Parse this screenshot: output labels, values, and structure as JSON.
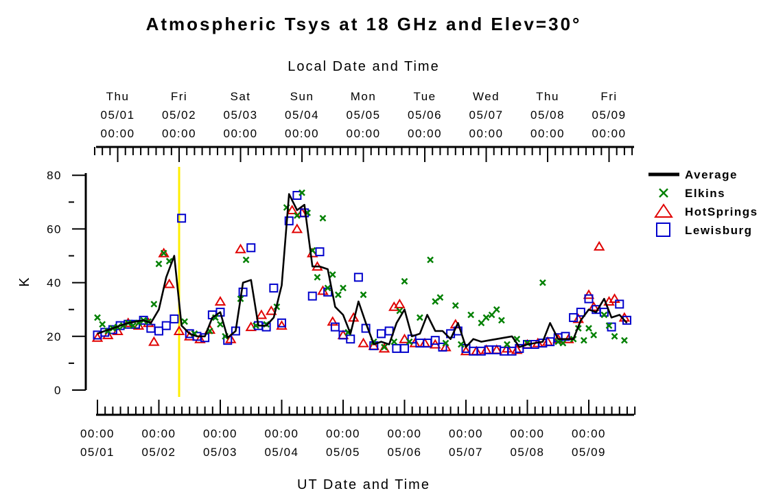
{
  "chart_data": {
    "type": "line",
    "title": "Atmospheric Tsys at 18 GHz and Elev=30°",
    "top_axis_label": "Local Date and Time",
    "xlabel": "UT Date and Time",
    "ylabel": "K",
    "ylim": [
      0,
      80
    ],
    "y_ticks": [
      "0",
      "20",
      "40",
      "60",
      "80"
    ],
    "x_unit": "days since 05/01 00:00 UT",
    "xlim": [
      0,
      8.75
    ],
    "bottom_ticks": [
      {
        "t": "00:00",
        "d": "05/01",
        "x": 0
      },
      {
        "t": "00:00",
        "d": "05/02",
        "x": 1
      },
      {
        "t": "00:00",
        "d": "05/03",
        "x": 2
      },
      {
        "t": "00:00",
        "d": "05/04",
        "x": 3
      },
      {
        "t": "00:00",
        "d": "05/05",
        "x": 4
      },
      {
        "t": "00:00",
        "d": "05/06",
        "x": 5
      },
      {
        "t": "00:00",
        "d": "05/07",
        "x": 6
      },
      {
        "t": "00:00",
        "d": "05/08",
        "x": 7
      },
      {
        "t": "00:00",
        "d": "05/09",
        "x": 8
      }
    ],
    "top_ticks": [
      {
        "day": "Thu",
        "d": "05/01",
        "t": "00:00",
        "x": 0.33
      },
      {
        "day": "Fri",
        "d": "05/02",
        "t": "00:00",
        "x": 1.33
      },
      {
        "day": "Sat",
        "d": "05/03",
        "t": "00:00",
        "x": 2.33
      },
      {
        "day": "Sun",
        "d": "05/04",
        "t": "00:00",
        "x": 3.33
      },
      {
        "day": "Mon",
        "d": "05/05",
        "t": "00:00",
        "x": 4.33
      },
      {
        "day": "Tue",
        "d": "05/06",
        "t": "00:00",
        "x": 5.33
      },
      {
        "day": "Wed",
        "d": "05/07",
        "t": "00:00",
        "x": 6.33
      },
      {
        "day": "Thu",
        "d": "05/08",
        "t": "00:00",
        "x": 7.33
      },
      {
        "day": "Fri",
        "d": "05/09",
        "t": "00:00",
        "x": 8.33
      }
    ],
    "marker_line": {
      "x": 1.33,
      "color": "#ffee00"
    },
    "legend_position": "right",
    "series": [
      {
        "name": "Average",
        "style": "line",
        "color": "#000000",
        "points": [
          [
            0,
            21
          ],
          [
            0.12,
            22
          ],
          [
            0.25,
            23
          ],
          [
            0.37,
            24
          ],
          [
            0.5,
            25
          ],
          [
            0.62,
            25.5
          ],
          [
            0.75,
            26
          ],
          [
            0.87,
            25
          ],
          [
            1.0,
            30
          ],
          [
            1.12,
            42
          ],
          [
            1.25,
            50
          ],
          [
            1.37,
            24
          ],
          [
            1.5,
            21
          ],
          [
            1.62,
            20
          ],
          [
            1.75,
            20
          ],
          [
            1.87,
            27
          ],
          [
            2.0,
            29
          ],
          [
            2.12,
            19.5
          ],
          [
            2.25,
            22
          ],
          [
            2.37,
            40
          ],
          [
            2.5,
            41
          ],
          [
            2.62,
            24
          ],
          [
            2.75,
            24
          ],
          [
            2.87,
            27
          ],
          [
            3.0,
            39
          ],
          [
            3.12,
            73
          ],
          [
            3.25,
            67
          ],
          [
            3.37,
            69
          ],
          [
            3.5,
            46
          ],
          [
            3.62,
            46
          ],
          [
            3.75,
            45
          ],
          [
            3.87,
            31
          ],
          [
            4.0,
            28
          ],
          [
            4.12,
            21
          ],
          [
            4.25,
            33
          ],
          [
            4.37,
            25
          ],
          [
            4.5,
            17
          ],
          [
            4.62,
            18
          ],
          [
            4.75,
            17
          ],
          [
            4.87,
            25
          ],
          [
            5.0,
            30
          ],
          [
            5.12,
            20
          ],
          [
            5.25,
            21
          ],
          [
            5.37,
            28
          ],
          [
            5.5,
            22
          ],
          [
            5.62,
            22
          ],
          [
            5.75,
            19
          ],
          [
            5.87,
            25
          ],
          [
            6.0,
            16
          ],
          [
            6.12,
            19
          ],
          [
            6.25,
            18
          ],
          [
            6.37,
            18.5
          ],
          [
            6.5,
            19
          ],
          [
            6.62,
            19.5
          ],
          [
            6.75,
            20
          ],
          [
            6.87,
            16
          ],
          [
            7.0,
            17
          ],
          [
            7.12,
            17.5
          ],
          [
            7.25,
            18
          ],
          [
            7.37,
            25
          ],
          [
            7.5,
            19
          ],
          [
            7.62,
            19
          ],
          [
            7.75,
            19
          ],
          [
            7.87,
            26
          ],
          [
            8.0,
            30
          ],
          [
            8.12,
            29
          ],
          [
            8.25,
            34
          ],
          [
            8.37,
            27
          ],
          [
            8.5,
            28
          ],
          [
            8.62,
            25
          ]
        ]
      },
      {
        "name": "Elkins",
        "style": "x",
        "color": "#008000",
        "points": [
          [
            0,
            27
          ],
          [
            0.08,
            24.5
          ],
          [
            0.17,
            22
          ],
          [
            0.25,
            23
          ],
          [
            0.33,
            23.5
          ],
          [
            0.42,
            24
          ],
          [
            0.5,
            25
          ],
          [
            0.58,
            24
          ],
          [
            0.67,
            25
          ],
          [
            0.75,
            26
          ],
          [
            0.83,
            25.5
          ],
          [
            0.92,
            32
          ],
          [
            1.0,
            47
          ],
          [
            1.08,
            51
          ],
          [
            1.17,
            48
          ],
          [
            1.42,
            25.5
          ],
          [
            1.58,
            21
          ],
          [
            1.83,
            22
          ],
          [
            1.92,
            27
          ],
          [
            2.0,
            24.5
          ],
          [
            2.08,
            20
          ],
          [
            2.33,
            34
          ],
          [
            2.42,
            48.5
          ],
          [
            2.58,
            24
          ],
          [
            2.75,
            24.5
          ],
          [
            2.92,
            31
          ],
          [
            3.08,
            68
          ],
          [
            3.25,
            65
          ],
          [
            3.33,
            73.5
          ],
          [
            3.42,
            66
          ],
          [
            3.5,
            52
          ],
          [
            3.58,
            42
          ],
          [
            3.67,
            64
          ],
          [
            3.75,
            38
          ],
          [
            3.83,
            43
          ],
          [
            3.92,
            35.5
          ],
          [
            4.0,
            38
          ],
          [
            4.08,
            21.5
          ],
          [
            4.33,
            35.5
          ],
          [
            4.5,
            18
          ],
          [
            4.67,
            16
          ],
          [
            4.83,
            18
          ],
          [
            4.92,
            29.5
          ],
          [
            5.0,
            40.5
          ],
          [
            5.08,
            18
          ],
          [
            5.25,
            27
          ],
          [
            5.42,
            48.5
          ],
          [
            5.5,
            33
          ],
          [
            5.58,
            34.5
          ],
          [
            5.67,
            17.5
          ],
          [
            5.83,
            31.5
          ],
          [
            5.92,
            17
          ],
          [
            6.08,
            28
          ],
          [
            6.25,
            25
          ],
          [
            6.33,
            27
          ],
          [
            6.42,
            28
          ],
          [
            6.5,
            30
          ],
          [
            6.58,
            26
          ],
          [
            6.67,
            17
          ],
          [
            6.83,
            19
          ],
          [
            7.0,
            17.5
          ],
          [
            7.25,
            40
          ],
          [
            7.5,
            18
          ],
          [
            7.58,
            17.5
          ],
          [
            7.75,
            19
          ],
          [
            7.83,
            23
          ],
          [
            7.92,
            18.5
          ],
          [
            8.0,
            23
          ],
          [
            8.08,
            20.5
          ],
          [
            8.25,
            28
          ],
          [
            8.33,
            24
          ],
          [
            8.42,
            20
          ],
          [
            8.58,
            18.5
          ]
        ]
      },
      {
        "name": "HotSprings",
        "style": "triangle",
        "color": "#e00000",
        "points": [
          [
            0,
            19.5
          ],
          [
            0.17,
            20.5
          ],
          [
            0.33,
            22
          ],
          [
            0.5,
            25
          ],
          [
            0.67,
            24
          ],
          [
            0.83,
            25
          ],
          [
            0.92,
            18
          ],
          [
            1.08,
            51
          ],
          [
            1.17,
            39.5
          ],
          [
            1.33,
            22
          ],
          [
            1.5,
            20
          ],
          [
            1.67,
            19
          ],
          [
            1.83,
            22.5
          ],
          [
            2.0,
            33
          ],
          [
            2.17,
            19
          ],
          [
            2.33,
            52.5
          ],
          [
            2.5,
            23.5
          ],
          [
            2.67,
            28
          ],
          [
            2.83,
            29.5
          ],
          [
            3.0,
            24
          ],
          [
            3.17,
            67
          ],
          [
            3.25,
            60
          ],
          [
            3.33,
            66
          ],
          [
            3.5,
            51
          ],
          [
            3.58,
            46
          ],
          [
            3.67,
            37
          ],
          [
            3.83,
            25.5
          ],
          [
            4.0,
            20.5
          ],
          [
            4.17,
            27
          ],
          [
            4.33,
            17.5
          ],
          [
            4.5,
            16.5
          ],
          [
            4.67,
            15.5
          ],
          [
            4.83,
            31
          ],
          [
            4.92,
            32
          ],
          [
            5.0,
            19
          ],
          [
            5.17,
            17.5
          ],
          [
            5.33,
            17.5
          ],
          [
            5.5,
            17
          ],
          [
            5.67,
            16
          ],
          [
            5.83,
            24.5
          ],
          [
            6.0,
            14.5
          ],
          [
            6.17,
            14.5
          ],
          [
            6.33,
            15
          ],
          [
            6.5,
            15
          ],
          [
            6.67,
            15.5
          ],
          [
            6.83,
            15
          ],
          [
            7.0,
            17
          ],
          [
            7.17,
            17.5
          ],
          [
            7.33,
            18
          ],
          [
            7.5,
            19
          ],
          [
            7.67,
            19
          ],
          [
            7.83,
            26.5
          ],
          [
            8.0,
            35.5
          ],
          [
            8.08,
            31
          ],
          [
            8.17,
            53.5
          ],
          [
            8.33,
            33
          ],
          [
            8.42,
            34
          ],
          [
            8.58,
            27
          ]
        ]
      },
      {
        "name": "Lewisburg",
        "style": "square",
        "color": "#0000cc",
        "points": [
          [
            0,
            20.5
          ],
          [
            0.12,
            21.5
          ],
          [
            0.25,
            22.5
          ],
          [
            0.37,
            24
          ],
          [
            0.5,
            24.5
          ],
          [
            0.62,
            24.5
          ],
          [
            0.75,
            26
          ],
          [
            0.87,
            23
          ],
          [
            1.0,
            22
          ],
          [
            1.12,
            24
          ],
          [
            1.25,
            26.5
          ],
          [
            1.37,
            64
          ],
          [
            1.5,
            21
          ],
          [
            1.62,
            20
          ],
          [
            1.75,
            19.5
          ],
          [
            1.87,
            28
          ],
          [
            2.0,
            29
          ],
          [
            2.12,
            18.5
          ],
          [
            2.25,
            22
          ],
          [
            2.37,
            36.5
          ],
          [
            2.5,
            53
          ],
          [
            2.62,
            24
          ],
          [
            2.75,
            23.5
          ],
          [
            2.87,
            38
          ],
          [
            3.0,
            25
          ],
          [
            3.12,
            63
          ],
          [
            3.25,
            72.5
          ],
          [
            3.37,
            66
          ],
          [
            3.5,
            35
          ],
          [
            3.62,
            51.5
          ],
          [
            3.75,
            36.5
          ],
          [
            3.87,
            23.5
          ],
          [
            4.0,
            20.5
          ],
          [
            4.12,
            19
          ],
          [
            4.25,
            42
          ],
          [
            4.37,
            23
          ],
          [
            4.5,
            16.5
          ],
          [
            4.62,
            21
          ],
          [
            4.75,
            22
          ],
          [
            4.87,
            15.5
          ],
          [
            5.0,
            15.5
          ],
          [
            5.12,
            19
          ],
          [
            5.25,
            17.5
          ],
          [
            5.37,
            17.5
          ],
          [
            5.5,
            18.5
          ],
          [
            5.62,
            16
          ],
          [
            5.75,
            21
          ],
          [
            5.87,
            22
          ],
          [
            6.0,
            15.5
          ],
          [
            6.12,
            14.5
          ],
          [
            6.25,
            14.5
          ],
          [
            6.37,
            15
          ],
          [
            6.5,
            15
          ],
          [
            6.62,
            14.5
          ],
          [
            6.75,
            14.5
          ],
          [
            6.87,
            15.5
          ],
          [
            7.0,
            17
          ],
          [
            7.12,
            17
          ],
          [
            7.25,
            17.5
          ],
          [
            7.37,
            18
          ],
          [
            7.5,
            19.5
          ],
          [
            7.62,
            20
          ],
          [
            7.75,
            27
          ],
          [
            7.87,
            29
          ],
          [
            8.0,
            34
          ],
          [
            8.12,
            30
          ],
          [
            8.25,
            29
          ],
          [
            8.37,
            23.5
          ],
          [
            8.5,
            32
          ],
          [
            8.62,
            26
          ]
        ]
      }
    ]
  }
}
